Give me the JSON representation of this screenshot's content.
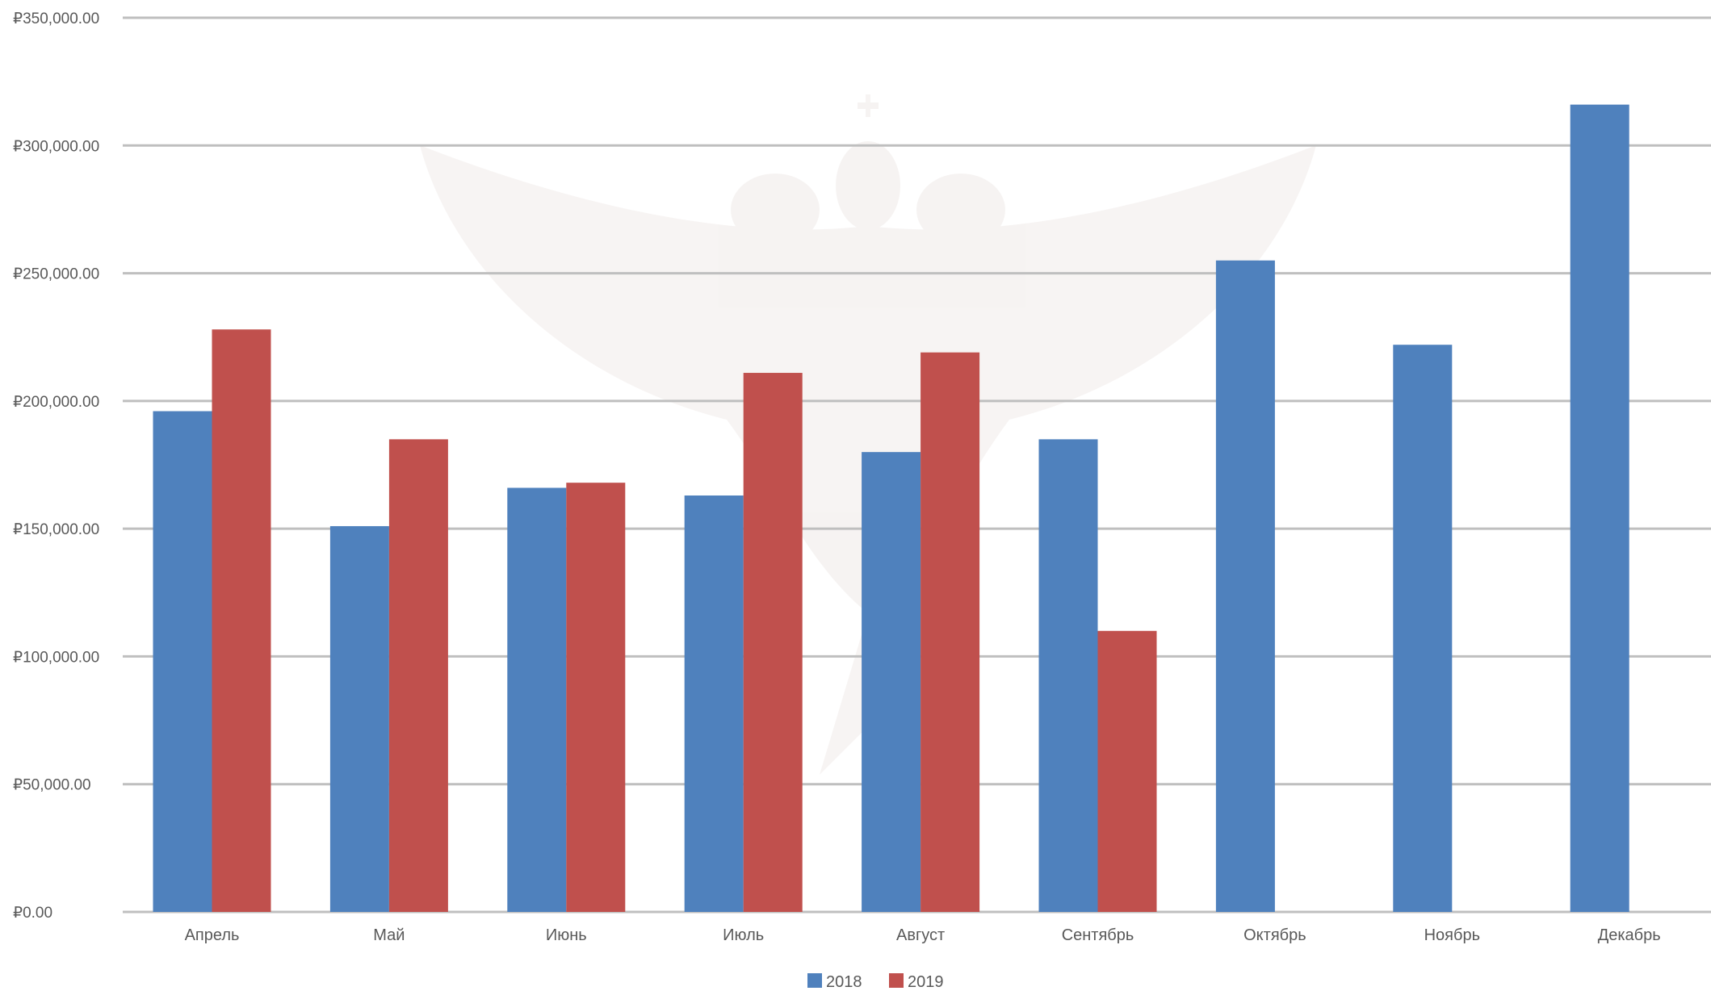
{
  "chart_data": {
    "type": "bar",
    "title": "",
    "xlabel": "",
    "ylabel": "",
    "ylim": [
      0,
      350000
    ],
    "yticks": [
      0,
      50000,
      100000,
      150000,
      200000,
      250000,
      300000,
      350000
    ],
    "ytick_labels": [
      "₽0.00",
      "₽50,000.00",
      "₽100,000.00",
      "₽150,000.00",
      "₽200,000.00",
      "₽250,000.00",
      "₽300,000.00",
      "₽350,000.00"
    ],
    "categories": [
      "Апрель",
      "Май",
      "Июнь",
      "Июль",
      "Август",
      "Сентябрь",
      "Октябрь",
      "Ноябрь",
      "Декабрь"
    ],
    "series": [
      {
        "name": "2018",
        "color": "#4F81BD",
        "values": [
          196000,
          151000,
          166000,
          163000,
          180000,
          185000,
          255000,
          222000,
          316000
        ]
      },
      {
        "name": "2019",
        "color": "#C0504D",
        "values": [
          228000,
          185000,
          168000,
          211000,
          219000,
          110000,
          null,
          null,
          null
        ]
      }
    ],
    "grid": true,
    "legend_position": "bottom-center",
    "watermark": "double-headed-eagle-emblem"
  }
}
